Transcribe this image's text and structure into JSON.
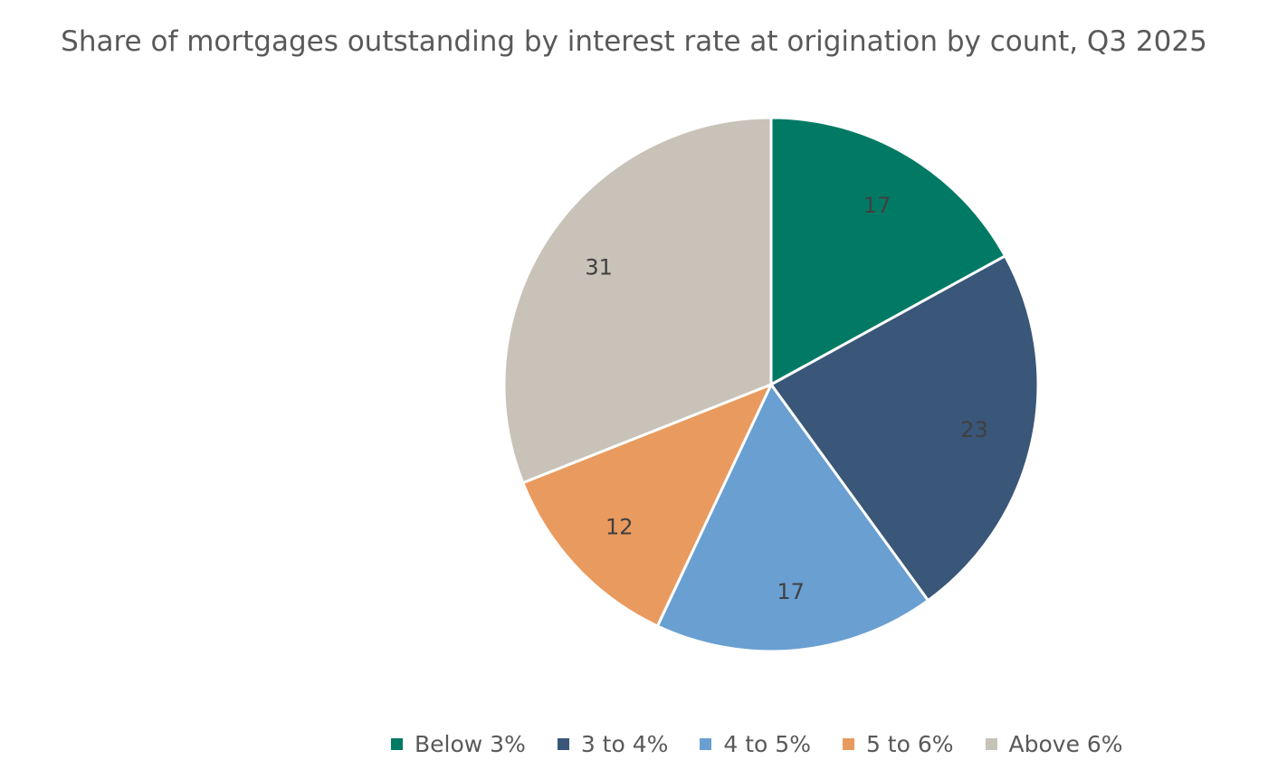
{
  "chart_data": {
    "type": "pie",
    "title": "Share of mortgages outstanding by interest rate at origination by count, Q3 2025",
    "categories": [
      "Below 3%",
      "3 to 4%",
      "4 to 5%",
      "5 to 6%",
      "Above 6%"
    ],
    "values": [
      17,
      23,
      17,
      12,
      31
    ],
    "data_labels": [
      "17",
      "23",
      "17",
      "12",
      "31"
    ],
    "colors": [
      "#007A64",
      "#3A5679",
      "#6A9FD1",
      "#E99A5E",
      "#C8C2B8"
    ],
    "legend_position": "bottom",
    "start_angle": "12 o'clock",
    "direction": "clockwise"
  }
}
